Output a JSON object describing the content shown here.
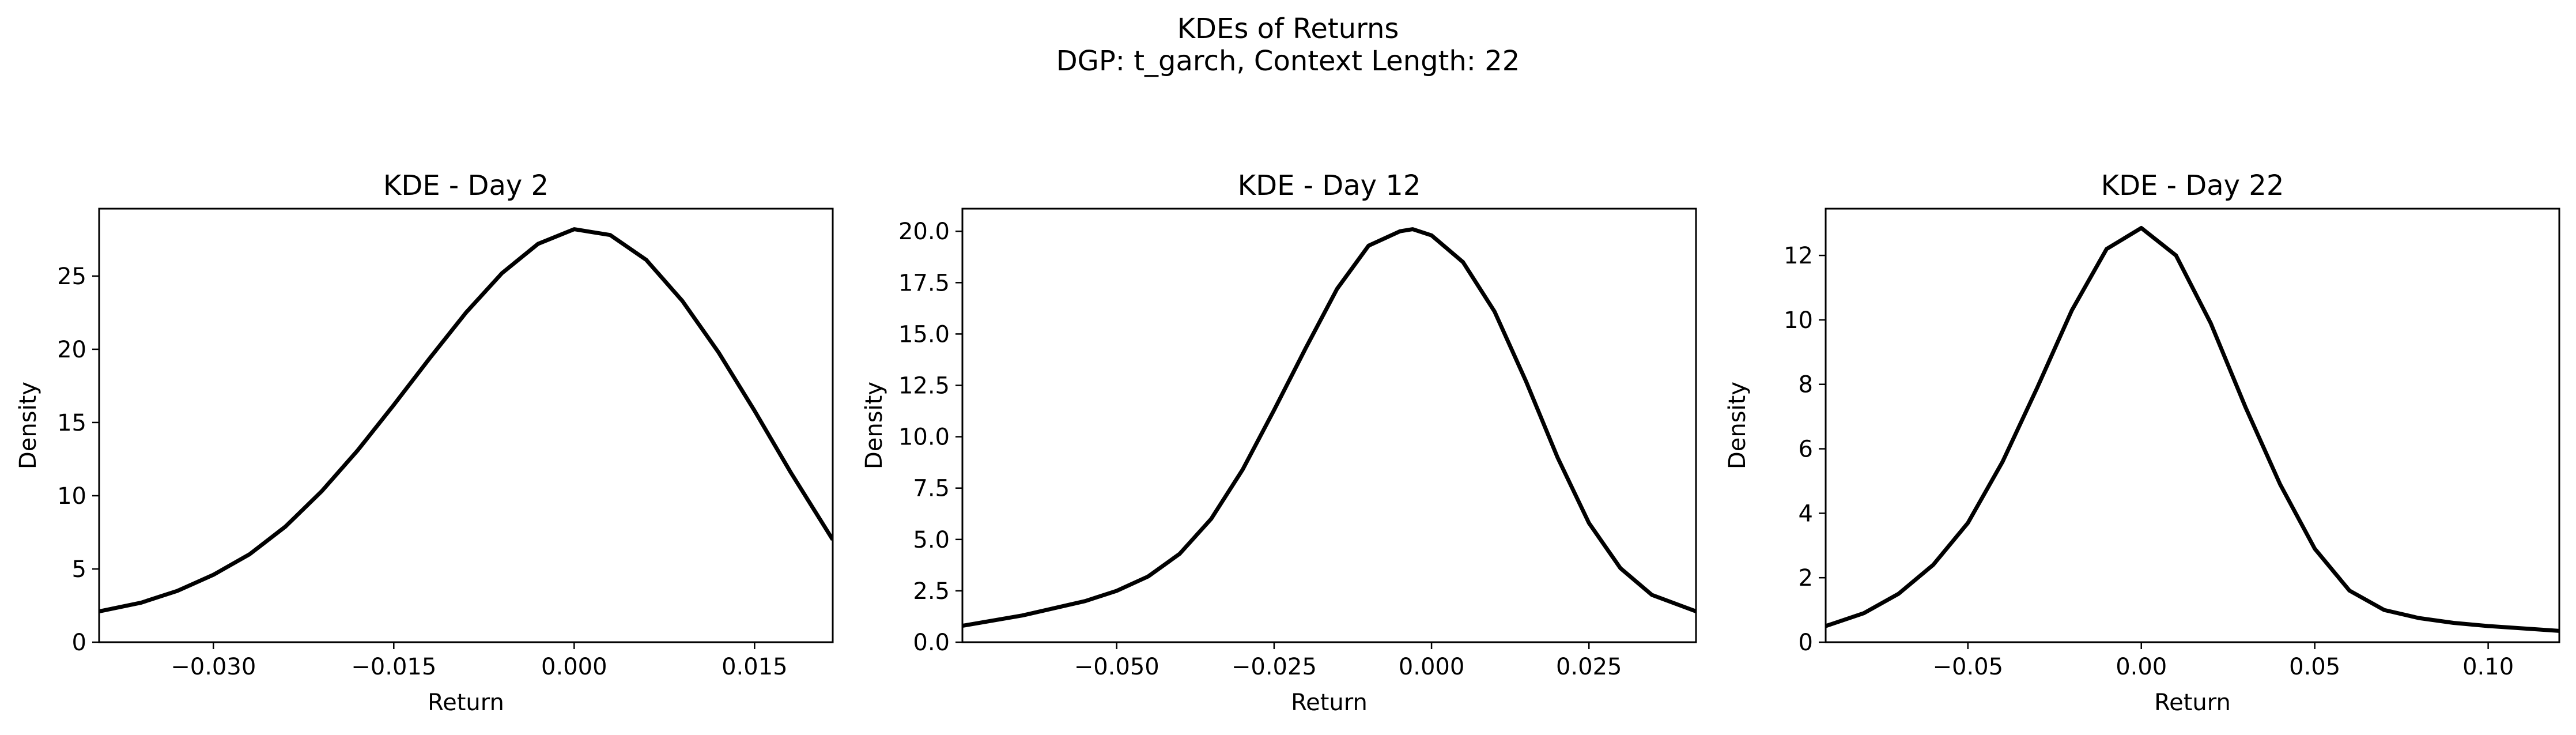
{
  "figure": {
    "suptitle_line1": "KDEs of Returns",
    "suptitle_line2": "DGP: t_garch, Context Length: 22"
  },
  "chart_data": [
    {
      "type": "line",
      "title": "KDE - Day 2",
      "xlabel": "Return",
      "ylabel": "Density",
      "xlim": [
        -0.0395,
        0.0215
      ],
      "ylim": [
        0,
        29.6
      ],
      "xticks": [
        -0.03,
        -0.015,
        0.0,
        0.015
      ],
      "xtick_labels": [
        "−0.030",
        "−0.015",
        "0.000",
        "0.015"
      ],
      "yticks": [
        0,
        5,
        10,
        15,
        20,
        25
      ],
      "ytick_labels": [
        "0",
        "5",
        "10",
        "15",
        "20",
        "25"
      ],
      "line_color": "#000000",
      "x": [
        -0.0395,
        -0.036,
        -0.033,
        -0.03,
        -0.027,
        -0.024,
        -0.021,
        -0.018,
        -0.015,
        -0.012,
        -0.009,
        -0.006,
        -0.003,
        0.0,
        0.003,
        0.006,
        0.009,
        0.012,
        0.015,
        0.018,
        0.0215
      ],
      "y": [
        2.1,
        2.7,
        3.5,
        4.6,
        6.0,
        7.9,
        10.3,
        13.1,
        16.2,
        19.4,
        22.5,
        25.2,
        27.2,
        28.2,
        27.8,
        26.1,
        23.3,
        19.8,
        15.8,
        11.6,
        7.0
      ]
    },
    {
      "type": "line",
      "title": "KDE - Day 12",
      "xlabel": "Return",
      "ylabel": "Density",
      "xlim": [
        -0.0745,
        0.042
      ],
      "ylim": [
        0,
        21.1
      ],
      "xticks": [
        -0.05,
        -0.025,
        0.0,
        0.025
      ],
      "xtick_labels": [
        "−0.050",
        "−0.025",
        "0.000",
        "0.025"
      ],
      "yticks": [
        0,
        2.5,
        5.0,
        7.5,
        10.0,
        12.5,
        15.0,
        17.5,
        20.0
      ],
      "ytick_labels": [
        "0.0",
        "2.5",
        "5.0",
        "7.5",
        "10.0",
        "12.5",
        "15.0",
        "17.5",
        "20.0"
      ],
      "line_color": "#000000",
      "x": [
        -0.0745,
        -0.065,
        -0.055,
        -0.05,
        -0.045,
        -0.04,
        -0.035,
        -0.03,
        -0.025,
        -0.02,
        -0.015,
        -0.01,
        -0.005,
        -0.003,
        0.0,
        0.005,
        0.01,
        0.015,
        0.02,
        0.025,
        0.03,
        0.035,
        0.042
      ],
      "y": [
        0.8,
        1.3,
        2.0,
        2.5,
        3.2,
        4.3,
        6.0,
        8.4,
        11.3,
        14.3,
        17.2,
        19.3,
        20.0,
        20.1,
        19.8,
        18.5,
        16.1,
        12.7,
        9.0,
        5.8,
        3.6,
        2.3,
        1.5
      ]
    },
    {
      "type": "line",
      "title": "KDE - Day 22",
      "xlabel": "Return",
      "ylabel": "Density",
      "xlim": [
        -0.091,
        0.1205
      ],
      "ylim": [
        0,
        13.45
      ],
      "xticks": [
        -0.05,
        0.0,
        0.05,
        0.1
      ],
      "xtick_labels": [
        "−0.05",
        "0.00",
        "0.05",
        "0.10"
      ],
      "yticks": [
        0,
        2,
        4,
        6,
        8,
        10,
        12
      ],
      "ytick_labels": [
        "0",
        "2",
        "4",
        "6",
        "8",
        "10",
        "12"
      ],
      "line_color": "#000000",
      "x": [
        -0.091,
        -0.08,
        -0.07,
        -0.06,
        -0.05,
        -0.04,
        -0.03,
        -0.02,
        -0.01,
        0.0,
        0.01,
        0.02,
        0.03,
        0.04,
        0.05,
        0.06,
        0.07,
        0.08,
        0.09,
        0.1,
        0.1205
      ],
      "y": [
        0.5,
        0.9,
        1.5,
        2.4,
        3.7,
        5.6,
        7.9,
        10.3,
        12.2,
        12.85,
        12.0,
        9.9,
        7.3,
        4.9,
        2.9,
        1.6,
        1.0,
        0.75,
        0.6,
        0.5,
        0.35
      ]
    }
  ]
}
